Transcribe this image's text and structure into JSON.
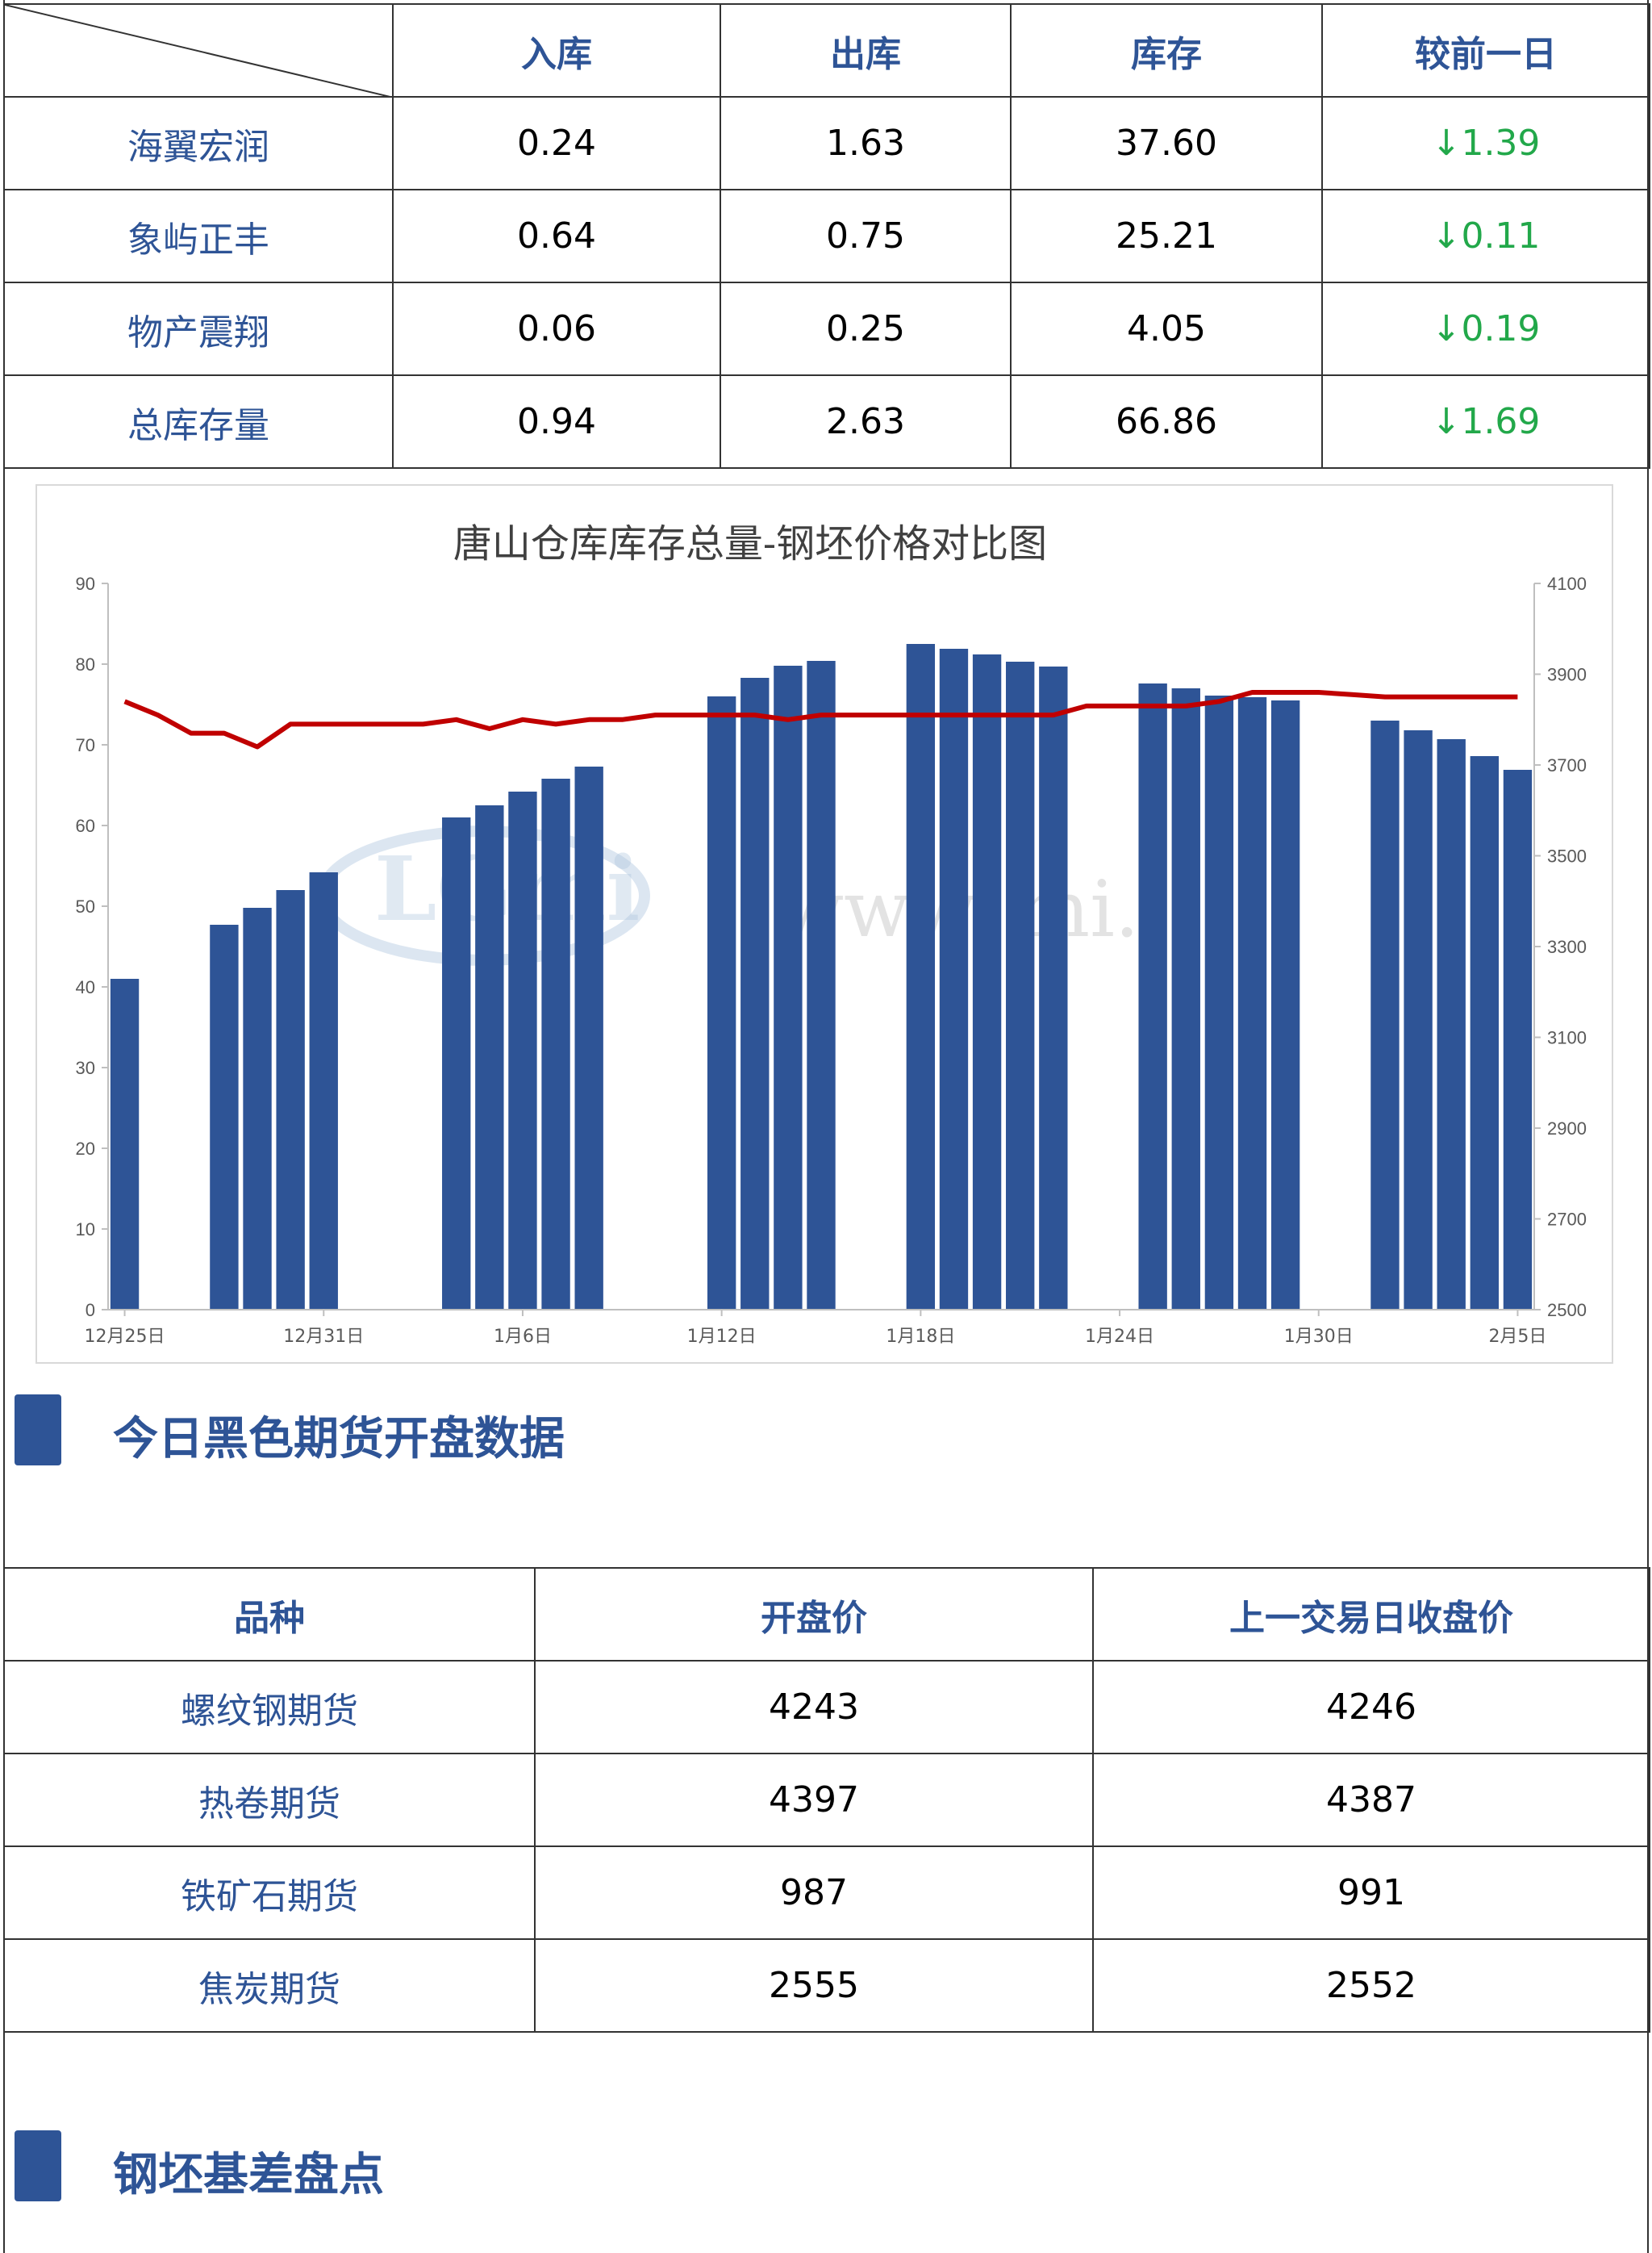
{
  "warehouse_table": {
    "headers": [
      "入库",
      "出库",
      "库存",
      "较前一日"
    ],
    "rows": [
      {
        "name": "海翼宏润",
        "in": "0.24",
        "out": "1.63",
        "stock": "37.60",
        "change": "↓1.39"
      },
      {
        "name": "象屿正丰",
        "in": "0.64",
        "out": "0.75",
        "stock": "25.21",
        "change": "↓0.11"
      },
      {
        "name": "物产震翔",
        "in": "0.06",
        "out": "0.25",
        "stock": "4.05",
        "change": "↓0.19"
      },
      {
        "name": "总库存量",
        "in": "0.94",
        "out": "2.63",
        "stock": "66.86",
        "change": "↓1.69"
      }
    ]
  },
  "chart_data": {
    "type": "bar",
    "title": "唐山仓库库存总量-钢坯价格对比图",
    "watermark": "www.        mi.      ",
    "x_tick_labels": [
      "12月25日",
      "12月31日",
      "1月6日",
      "1月12日",
      "1月18日",
      "1月24日",
      "1月30日",
      "2月5日"
    ],
    "y_left": {
      "min": 0,
      "max": 90,
      "ticks": [
        0,
        10,
        20,
        30,
        40,
        50,
        60,
        70,
        80,
        90
      ]
    },
    "y_right": {
      "min": 2500,
      "max": 4100,
      "ticks": [
        2500,
        2700,
        2900,
        3100,
        3300,
        3500,
        3700,
        3900,
        4100
      ]
    },
    "dates": [
      "12-25",
      "12-26",
      "12-27",
      "12-28",
      "12-29",
      "12-30",
      "12-31",
      "01-01",
      "01-02",
      "01-03",
      "01-04",
      "01-05",
      "01-06",
      "01-07",
      "01-08",
      "01-09",
      "01-10",
      "01-11",
      "01-12",
      "01-13",
      "01-14",
      "01-15",
      "01-16",
      "01-17",
      "01-18",
      "01-19",
      "01-20",
      "01-21",
      "01-22",
      "01-23",
      "01-24",
      "01-25",
      "01-26",
      "01-27",
      "01-28",
      "01-29",
      "01-30",
      "01-31",
      "02-01",
      "02-02",
      "02-03",
      "02-04",
      "02-05"
    ],
    "series": [
      {
        "type": "bar",
        "axis": "left",
        "color": "#2e5496",
        "values": [
          41,
          null,
          null,
          47.7,
          49.8,
          52,
          54.2,
          null,
          null,
          null,
          61,
          62.5,
          64.2,
          65.8,
          67.3,
          null,
          null,
          null,
          76,
          78.3,
          79.8,
          80.4,
          null,
          null,
          82.5,
          81.9,
          81.2,
          80.3,
          79.7,
          null,
          null,
          77.6,
          77,
          76.1,
          75.9,
          75.5,
          null,
          null,
          73,
          71.8,
          70.7,
          68.6,
          66.9
        ]
      },
      {
        "type": "line",
        "axis": "right",
        "color": "#c00000",
        "values": [
          3840,
          3810,
          3770,
          3770,
          3740,
          3790,
          3790,
          3790,
          3790,
          3790,
          3800,
          3780,
          3800,
          3790,
          3800,
          3800,
          3810,
          3810,
          3810,
          3810,
          3800,
          3810,
          3810,
          3810,
          3810,
          3810,
          3810,
          3810,
          3810,
          3830,
          3830,
          3830,
          3830,
          3840,
          3860,
          3860,
          3860,
          3855,
          3850,
          3850,
          3850,
          3850,
          3850
        ]
      }
    ]
  },
  "section1": {
    "title": "今日黑色期货开盘数据"
  },
  "futures_table": {
    "headers": [
      "品种",
      "开盘价",
      "上一交易日收盘价"
    ],
    "rows": [
      {
        "name": "螺纹钢期货",
        "open": "4243",
        "prev": "4246"
      },
      {
        "name": "热卷期货",
        "open": "4397",
        "prev": "4387"
      },
      {
        "name": "铁矿石期货",
        "open": "987",
        "prev": "991"
      },
      {
        "name": "焦炭期货",
        "open": "2555",
        "prev": "2552"
      }
    ]
  },
  "section2": {
    "title": "钢坯基差盘点"
  },
  "colors": {
    "accent": "#2e5496",
    "down": "#22a84a",
    "price_line": "#c00000"
  }
}
